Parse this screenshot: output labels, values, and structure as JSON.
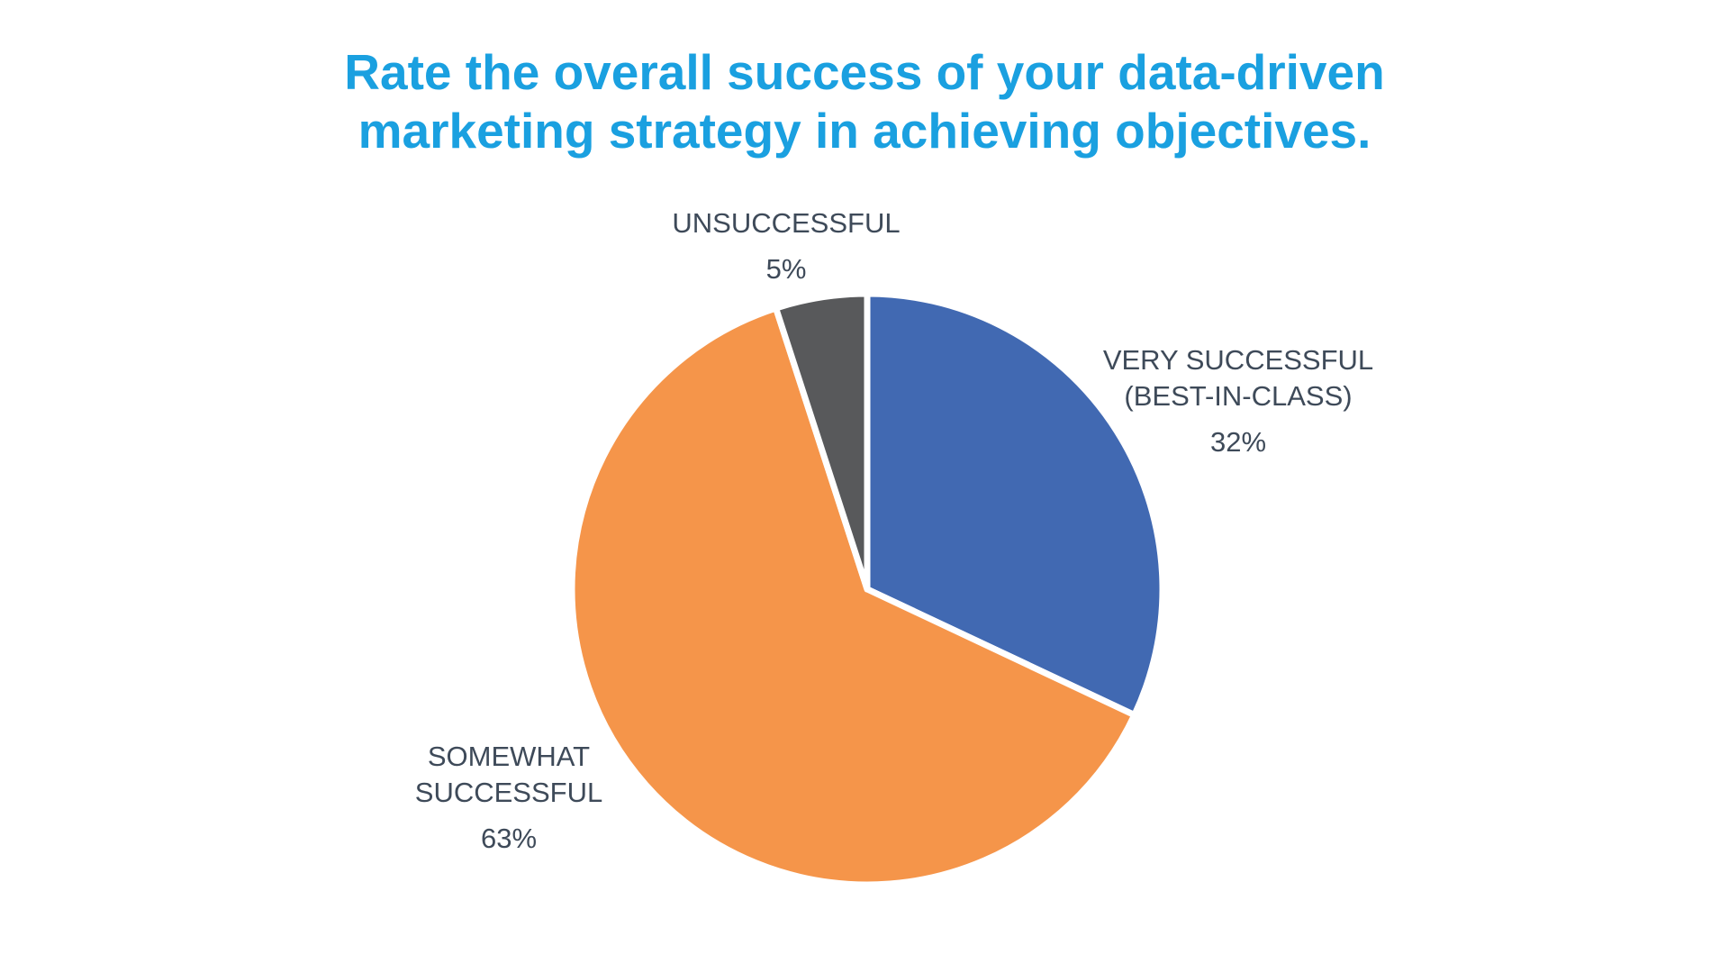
{
  "chart_data": {
    "type": "pie",
    "title": "Rate the overall success of your data-driven\nmarketing strategy in achieving objectives.",
    "title_color": "#1AA0E0",
    "background_color": "#FFFFFF",
    "legend_position": "none",
    "labels_position": "outside",
    "label_text_color": "#3E4A59",
    "gap_color": "#FFFFFF",
    "start_angle_deg": 0,
    "direction": "clockwise",
    "slices": [
      {
        "id": "very-successful",
        "label": "VERY SUCCESSFUL\n(BEST-IN-CLASS)",
        "pct": "32%",
        "value": 32,
        "color": "#4169B2"
      },
      {
        "id": "somewhat-successful",
        "label": "SOMEWHAT\nSUCCESSFUL",
        "pct": "63%",
        "value": 63,
        "color": "#F5954A"
      },
      {
        "id": "unsuccessful",
        "label": "UNSUCCESSFUL",
        "pct": "5%",
        "value": 5,
        "color": "#58595B"
      }
    ]
  }
}
